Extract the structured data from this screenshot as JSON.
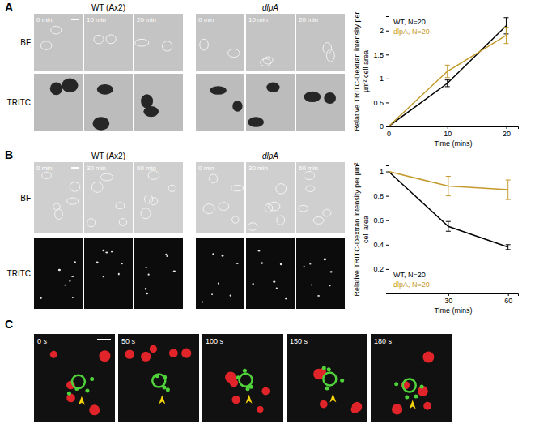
{
  "figure": {
    "panels": [
      {
        "letter": "A",
        "rows": [
          "BF",
          "TRITC"
        ],
        "groups": [
          {
            "title": "WT (Ax2)",
            "times": [
              "0 min",
              "10 min",
              "20 min"
            ]
          },
          {
            "title": "dlpA",
            "times": [
              "0 min",
              "10 min",
              "20 min"
            ]
          }
        ]
      },
      {
        "letter": "B",
        "rows": [
          "BF",
          "TRITC"
        ],
        "groups": [
          {
            "title": "WT (Ax2)",
            "times": [
              "0 min",
              "30 min",
              "60 min"
            ]
          },
          {
            "title": "dlpA",
            "times": [
              "0 min",
              "30 min",
              "60 min"
            ]
          }
        ]
      },
      {
        "letter": "C",
        "times": [
          "0 s",
          "50 s",
          "100 s",
          "150 s",
          "180 s"
        ]
      }
    ]
  },
  "chart_data": [
    {
      "type": "line",
      "x": [
        0,
        10,
        20
      ],
      "xlim": [
        0,
        22
      ],
      "xticks": [
        0,
        10,
        20
      ],
      "ylim": [
        0,
        2.3
      ],
      "yticks": [
        0,
        0.5,
        1,
        1.5,
        2
      ],
      "x_label": "Time (mins)",
      "y_label": "Relative TRITC-Dextran intensity per µm² cell area",
      "legend": "top-left",
      "series": [
        {
          "name": "WT, N=20",
          "color": "#000000",
          "values": [
            0,
            0.9,
            2.1
          ],
          "errors": [
            null,
            0.07,
            0.17
          ]
        },
        {
          "name": "dlpA, N=20",
          "color": "#c49a2c",
          "values": [
            0,
            1.15,
            1.9
          ],
          "errors": [
            null,
            0.13,
            0.17
          ]
        }
      ]
    },
    {
      "type": "line",
      "x": [
        0,
        30,
        60
      ],
      "xlim": [
        0,
        65
      ],
      "xticks": [
        30,
        60
      ],
      "ylim": [
        0,
        1.05
      ],
      "yticks": [
        0.2,
        0.4,
        0.6,
        0.8,
        1
      ],
      "x_label": "Time (mins)",
      "y_label": "Relative TRITC-Dextran intensity per µm² cell area",
      "legend": "bottom-left",
      "series": [
        {
          "name": "WT, N=20",
          "color": "#000000",
          "values": [
            1,
            0.55,
            0.38
          ],
          "errors": [
            null,
            0.04,
            0.02
          ]
        },
        {
          "name": "dlpA, N=20",
          "color": "#c49a2c",
          "values": [
            1,
            0.88,
            0.85
          ],
          "errors": [
            null,
            0.08,
            0.08
          ]
        }
      ]
    }
  ]
}
